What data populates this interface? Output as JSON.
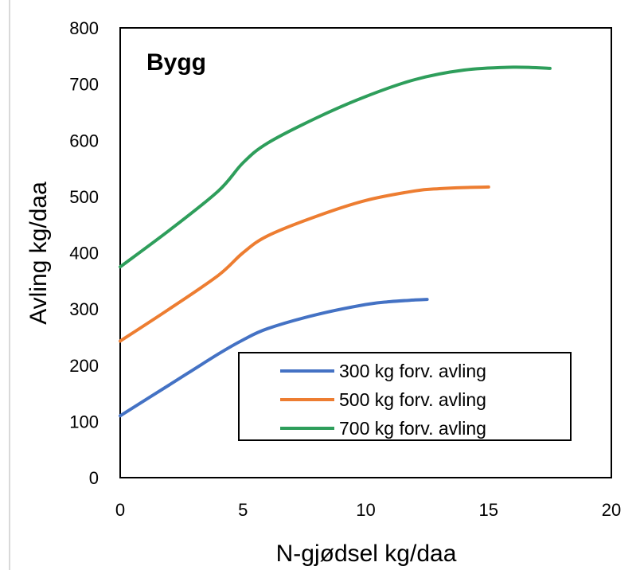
{
  "chart_data": {
    "type": "line",
    "title": "Bygg",
    "xlabel": "N-gjødsel kg/daa",
    "ylabel": "Avling kg/daa",
    "xlim": [
      0,
      20
    ],
    "ylim": [
      0,
      800
    ],
    "xticks": [
      0,
      5,
      10,
      15,
      20
    ],
    "yticks": [
      0,
      100,
      200,
      300,
      400,
      500,
      600,
      700,
      800
    ],
    "grid": false,
    "legend_position": "bottom-right",
    "series": [
      {
        "name": "300 kg forv. avling",
        "color": "#4472C4",
        "x": [
          0,
          2,
          4,
          5,
          6,
          8,
          10,
          11,
          12,
          12.5
        ],
        "y": [
          110,
          165,
          220,
          245,
          265,
          290,
          308,
          313,
          316,
          317
        ]
      },
      {
        "name": "500 kg forv. avling",
        "color": "#ED7D31",
        "x": [
          0,
          2,
          4,
          5,
          6,
          8,
          10,
          12,
          13,
          14,
          15
        ],
        "y": [
          243,
          300,
          360,
          400,
          430,
          465,
          493,
          510,
          514,
          516,
          517
        ]
      },
      {
        "name": "700 kg forv. avling",
        "color": "#2E9E5B",
        "x": [
          0,
          2,
          4,
          5,
          6,
          8,
          10,
          12,
          14,
          16,
          17.5
        ],
        "y": [
          375,
          440,
          510,
          560,
          595,
          640,
          678,
          708,
          725,
          730,
          728
        ]
      }
    ]
  }
}
